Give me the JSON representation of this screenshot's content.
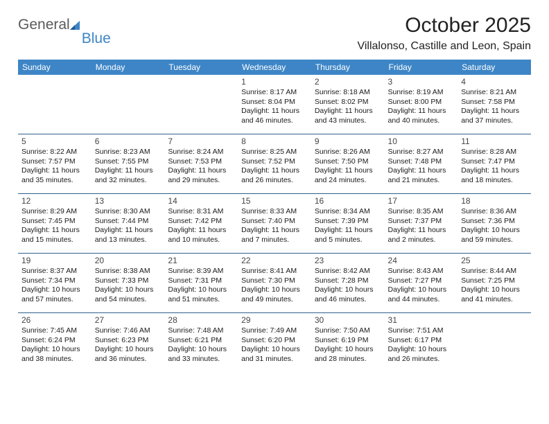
{
  "logo": {
    "word1": "General",
    "word2": "Blue"
  },
  "title": "October 2025",
  "location": "Villalonso, Castille and Leon, Spain",
  "colors": {
    "header_bg": "#3d85c6",
    "header_text": "#ffffff",
    "row_border": "#2f5f8a",
    "text": "#1a1a1a",
    "logo_gray": "#5a5a5a",
    "logo_blue": "#3d85c6"
  },
  "weekdays": [
    "Sunday",
    "Monday",
    "Tuesday",
    "Wednesday",
    "Thursday",
    "Friday",
    "Saturday"
  ],
  "weeks": [
    [
      {
        "day": ""
      },
      {
        "day": ""
      },
      {
        "day": ""
      },
      {
        "day": "1",
        "sunrise": "8:17 AM",
        "sunset": "8:04 PM",
        "daylight": "11 hours and 46 minutes."
      },
      {
        "day": "2",
        "sunrise": "8:18 AM",
        "sunset": "8:02 PM",
        "daylight": "11 hours and 43 minutes."
      },
      {
        "day": "3",
        "sunrise": "8:19 AM",
        "sunset": "8:00 PM",
        "daylight": "11 hours and 40 minutes."
      },
      {
        "day": "4",
        "sunrise": "8:21 AM",
        "sunset": "7:58 PM",
        "daylight": "11 hours and 37 minutes."
      }
    ],
    [
      {
        "day": "5",
        "sunrise": "8:22 AM",
        "sunset": "7:57 PM",
        "daylight": "11 hours and 35 minutes."
      },
      {
        "day": "6",
        "sunrise": "8:23 AM",
        "sunset": "7:55 PM",
        "daylight": "11 hours and 32 minutes."
      },
      {
        "day": "7",
        "sunrise": "8:24 AM",
        "sunset": "7:53 PM",
        "daylight": "11 hours and 29 minutes."
      },
      {
        "day": "8",
        "sunrise": "8:25 AM",
        "sunset": "7:52 PM",
        "daylight": "11 hours and 26 minutes."
      },
      {
        "day": "9",
        "sunrise": "8:26 AM",
        "sunset": "7:50 PM",
        "daylight": "11 hours and 24 minutes."
      },
      {
        "day": "10",
        "sunrise": "8:27 AM",
        "sunset": "7:48 PM",
        "daylight": "11 hours and 21 minutes."
      },
      {
        "day": "11",
        "sunrise": "8:28 AM",
        "sunset": "7:47 PM",
        "daylight": "11 hours and 18 minutes."
      }
    ],
    [
      {
        "day": "12",
        "sunrise": "8:29 AM",
        "sunset": "7:45 PM",
        "daylight": "11 hours and 15 minutes."
      },
      {
        "day": "13",
        "sunrise": "8:30 AM",
        "sunset": "7:44 PM",
        "daylight": "11 hours and 13 minutes."
      },
      {
        "day": "14",
        "sunrise": "8:31 AM",
        "sunset": "7:42 PM",
        "daylight": "11 hours and 10 minutes."
      },
      {
        "day": "15",
        "sunrise": "8:33 AM",
        "sunset": "7:40 PM",
        "daylight": "11 hours and 7 minutes."
      },
      {
        "day": "16",
        "sunrise": "8:34 AM",
        "sunset": "7:39 PM",
        "daylight": "11 hours and 5 minutes."
      },
      {
        "day": "17",
        "sunrise": "8:35 AM",
        "sunset": "7:37 PM",
        "daylight": "11 hours and 2 minutes."
      },
      {
        "day": "18",
        "sunrise": "8:36 AM",
        "sunset": "7:36 PM",
        "daylight": "10 hours and 59 minutes."
      }
    ],
    [
      {
        "day": "19",
        "sunrise": "8:37 AM",
        "sunset": "7:34 PM",
        "daylight": "10 hours and 57 minutes."
      },
      {
        "day": "20",
        "sunrise": "8:38 AM",
        "sunset": "7:33 PM",
        "daylight": "10 hours and 54 minutes."
      },
      {
        "day": "21",
        "sunrise": "8:39 AM",
        "sunset": "7:31 PM",
        "daylight": "10 hours and 51 minutes."
      },
      {
        "day": "22",
        "sunrise": "8:41 AM",
        "sunset": "7:30 PM",
        "daylight": "10 hours and 49 minutes."
      },
      {
        "day": "23",
        "sunrise": "8:42 AM",
        "sunset": "7:28 PM",
        "daylight": "10 hours and 46 minutes."
      },
      {
        "day": "24",
        "sunrise": "8:43 AM",
        "sunset": "7:27 PM",
        "daylight": "10 hours and 44 minutes."
      },
      {
        "day": "25",
        "sunrise": "8:44 AM",
        "sunset": "7:25 PM",
        "daylight": "10 hours and 41 minutes."
      }
    ],
    [
      {
        "day": "26",
        "sunrise": "7:45 AM",
        "sunset": "6:24 PM",
        "daylight": "10 hours and 38 minutes."
      },
      {
        "day": "27",
        "sunrise": "7:46 AM",
        "sunset": "6:23 PM",
        "daylight": "10 hours and 36 minutes."
      },
      {
        "day": "28",
        "sunrise": "7:48 AM",
        "sunset": "6:21 PM",
        "daylight": "10 hours and 33 minutes."
      },
      {
        "day": "29",
        "sunrise": "7:49 AM",
        "sunset": "6:20 PM",
        "daylight": "10 hours and 31 minutes."
      },
      {
        "day": "30",
        "sunrise": "7:50 AM",
        "sunset": "6:19 PM",
        "daylight": "10 hours and 28 minutes."
      },
      {
        "day": "31",
        "sunrise": "7:51 AM",
        "sunset": "6:17 PM",
        "daylight": "10 hours and 26 minutes."
      },
      {
        "day": ""
      }
    ]
  ],
  "labels": {
    "sunrise_prefix": "Sunrise: ",
    "sunset_prefix": "Sunset: ",
    "daylight_prefix": "Daylight: "
  }
}
